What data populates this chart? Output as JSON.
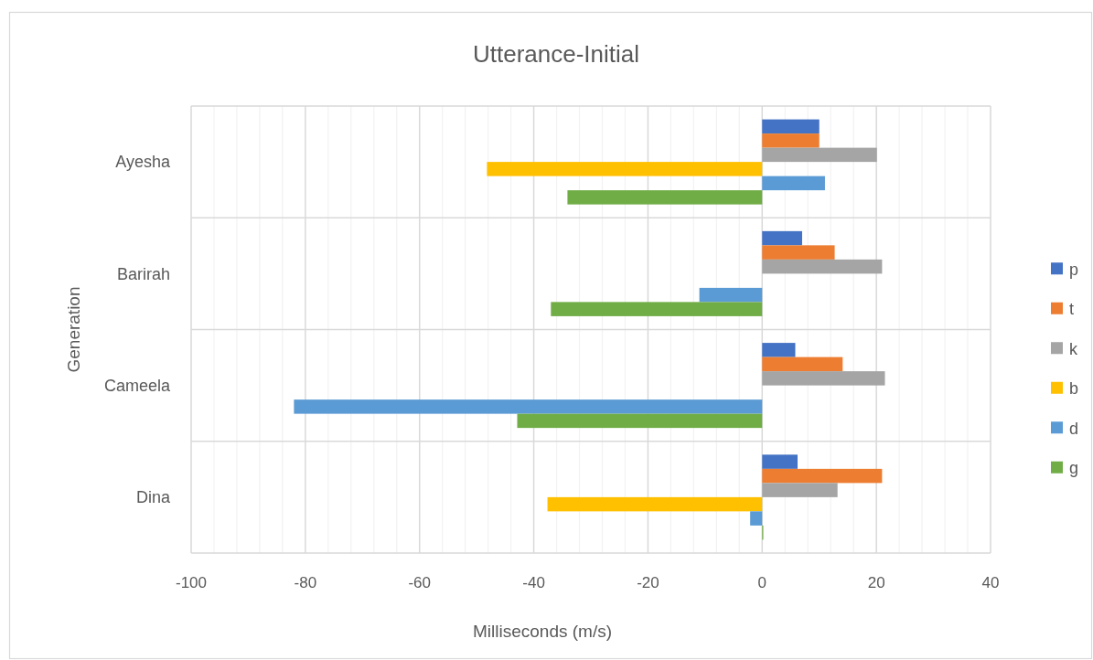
{
  "chart_data": {
    "type": "bar",
    "orientation": "horizontal",
    "title": "Utterance-Initial",
    "xlabel": "Milliseconds (m/s)",
    "ylabel": "Generation",
    "categories": [
      "Ayesha",
      "Barirah",
      "Cameela",
      "Dina"
    ],
    "series": [
      {
        "name": "p",
        "color": "#4472c4",
        "values": [
          10,
          7,
          5.8,
          6.2
        ]
      },
      {
        "name": "t",
        "color": "#ed7d31",
        "values": [
          10,
          12.7,
          14.1,
          21
        ]
      },
      {
        "name": "k",
        "color": "#a5a5a5",
        "values": [
          20.1,
          21,
          21.5,
          13.2
        ]
      },
      {
        "name": "b",
        "color": "#ffc000",
        "values": [
          -48.2,
          null,
          null,
          -37.6
        ]
      },
      {
        "name": "d",
        "color": "#5b9bd5",
        "values": [
          11,
          -11,
          -82,
          -2.1
        ]
      },
      {
        "name": "g",
        "color": "#70ad47",
        "values": [
          -34.1,
          -37,
          -42.9,
          0.2
        ]
      }
    ],
    "xlim": [
      -100,
      40
    ],
    "xticks": [
      -100,
      {
        "value": -96,
        "label": null
      },
      {
        "value": -92,
        "label": null
      },
      {
        "value": -88,
        "label": null
      },
      {
        "value": -84,
        "label": null
      },
      -80,
      {
        "value": -76,
        "label": null
      },
      {
        "value": -72,
        "label": null
      },
      {
        "value": -68,
        "label": null
      },
      {
        "value": -64,
        "label": null
      },
      -60,
      {
        "value": -56,
        "label": null
      },
      {
        "value": -52,
        "label": null
      },
      {
        "value": -48,
        "label": null
      },
      {
        "value": -44,
        "label": null
      },
      -40,
      {
        "value": -36,
        "label": null
      },
      {
        "value": -32,
        "label": null
      },
      {
        "value": -28,
        "label": null
      },
      {
        "value": -24,
        "label": null
      },
      -20,
      {
        "value": -16,
        "label": null
      },
      {
        "value": -12,
        "label": null
      },
      {
        "value": -8,
        "label": null
      },
      {
        "value": -4,
        "label": null
      },
      0,
      {
        "value": 4,
        "label": null
      },
      {
        "value": 8,
        "label": null
      },
      {
        "value": 12,
        "label": null
      },
      {
        "value": 16,
        "label": null
      },
      20,
      {
        "value": 24,
        "label": null
      },
      {
        "value": 28,
        "label": null
      },
      {
        "value": 32,
        "label": null
      },
      {
        "value": 36,
        "label": null
      },
      40
    ],
    "grid": true,
    "legend": "right"
  }
}
